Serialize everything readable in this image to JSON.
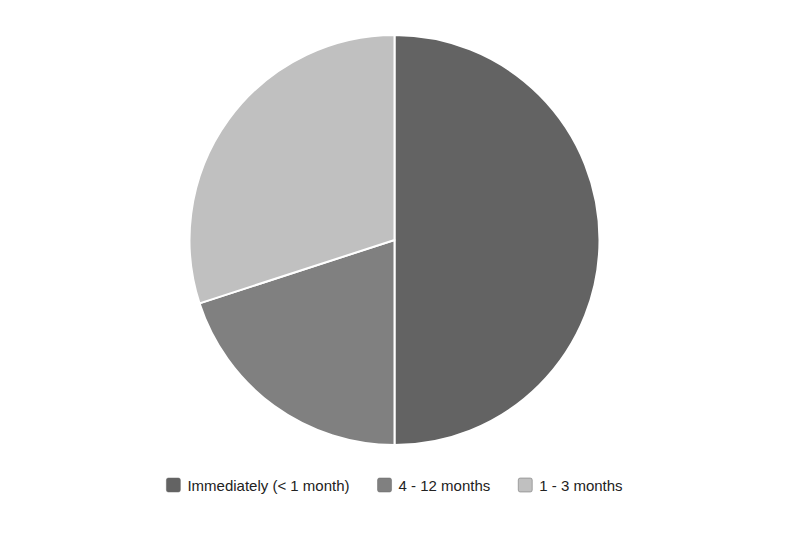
{
  "chart_data": {
    "type": "pie",
    "categories": [
      "Immediately (< 1 month)",
      "4 - 12 months",
      "1 - 3 months"
    ],
    "values": [
      50,
      20,
      30
    ],
    "colors": [
      "#636363",
      "#808080",
      "#c0c0c0"
    ],
    "legend": "bottom"
  }
}
